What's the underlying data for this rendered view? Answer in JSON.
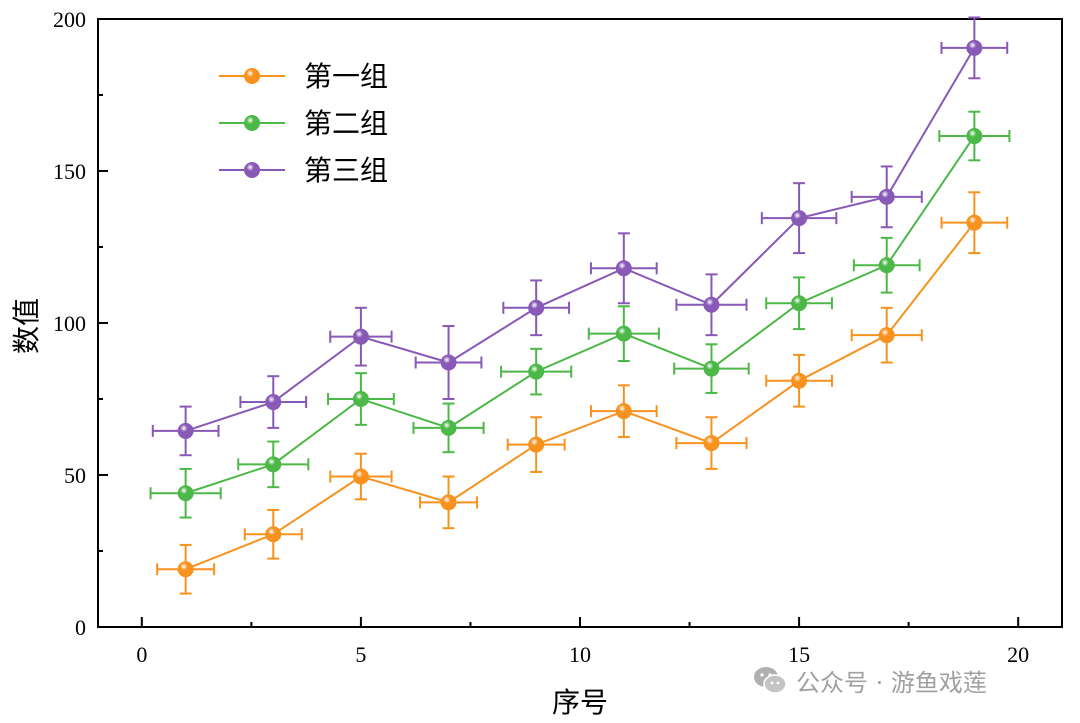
{
  "chart_data": {
    "type": "line",
    "xlabel": "序号",
    "ylabel": "数值",
    "xlim": [
      -1,
      21
    ],
    "ylim": [
      0,
      200
    ],
    "xticks": [
      0,
      5,
      10,
      15,
      20
    ],
    "yticks": [
      0,
      50,
      100,
      150,
      200
    ],
    "x": [
      1,
      3,
      5,
      7,
      9,
      11,
      13,
      15,
      17,
      19
    ],
    "legend_position": "top-left",
    "series": [
      {
        "name": "第一组",
        "color": "#F7921E",
        "values": [
          19,
          30.5,
          49.5,
          41,
          60,
          71,
          60.5,
          81,
          96,
          133
        ],
        "y_err": [
          8,
          8,
          7.5,
          8.5,
          9,
          8.5,
          8.5,
          8.5,
          9,
          10
        ],
        "x_err": [
          0.65,
          0.65,
          0.7,
          0.65,
          0.65,
          0.75,
          0.8,
          0.75,
          0.8,
          0.75
        ]
      },
      {
        "name": "第二组",
        "color": "#4CB848",
        "values": [
          44,
          53.5,
          75,
          65.5,
          84,
          96.5,
          85,
          106.5,
          119,
          161.5
        ],
        "y_err": [
          8,
          7.5,
          8.5,
          8,
          7.5,
          9,
          8,
          8.5,
          9,
          8
        ],
        "x_err": [
          0.8,
          0.8,
          0.75,
          0.8,
          0.8,
          0.8,
          0.85,
          0.75,
          0.75,
          0.8
        ]
      },
      {
        "name": "第三组",
        "color": "#8859B6",
        "values": [
          64.5,
          74,
          95.5,
          87,
          105,
          118,
          106,
          134.5,
          141.5,
          190.5
        ],
        "y_err": [
          8,
          8.5,
          9.5,
          12,
          9,
          11.5,
          10,
          11.5,
          10,
          10
        ],
        "x_err": [
          0.75,
          0.75,
          0.7,
          0.75,
          0.75,
          0.75,
          0.8,
          0.85,
          0.8,
          0.75
        ]
      }
    ]
  },
  "watermark": {
    "icon": "wechat-icon",
    "text": "公众号 · 游鱼戏莲"
  }
}
